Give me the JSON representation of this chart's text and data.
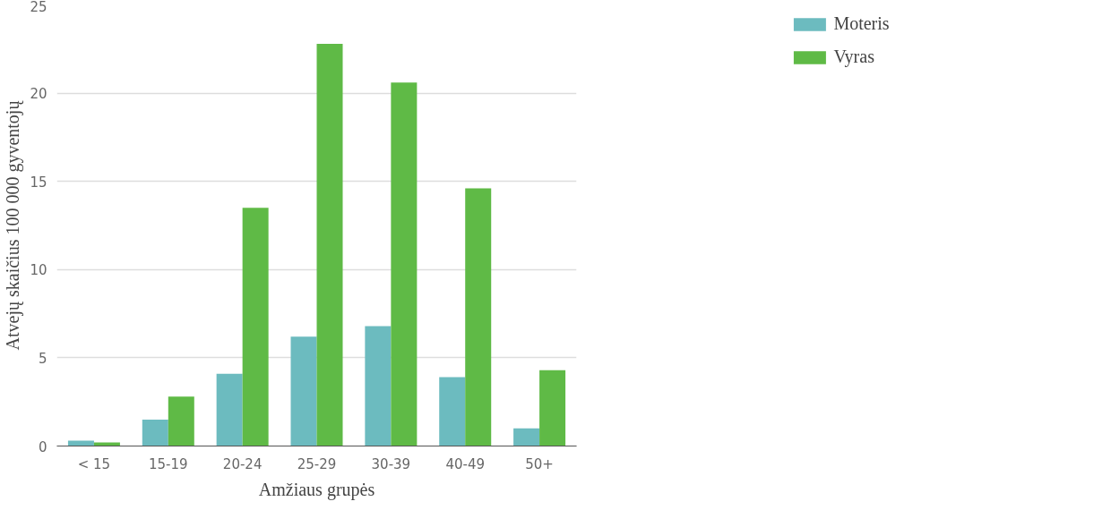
{
  "chart_data": {
    "type": "bar",
    "xlabel": "Amžiaus grupės",
    "ylabel": "Atvejų skaičius 100 000 gyventojų",
    "categories": [
      "< 15",
      "15-19",
      "20-24",
      "25-29",
      "30-39",
      "40-49",
      "50+"
    ],
    "series": [
      {
        "name": "Moteris",
        "color": "#6cbbbf",
        "values": [
          0.3,
          1.5,
          4.1,
          6.2,
          6.8,
          3.9,
          1.0
        ]
      },
      {
        "name": "Vyras",
        "color": "#5fba46",
        "values": [
          0.2,
          2.8,
          13.5,
          22.8,
          20.6,
          14.6,
          4.3
        ]
      }
    ],
    "ylim": [
      0,
      25
    ],
    "yticks": [
      0,
      5,
      10,
      15,
      20,
      25
    ],
    "grid": "y",
    "legend": "top right"
  }
}
